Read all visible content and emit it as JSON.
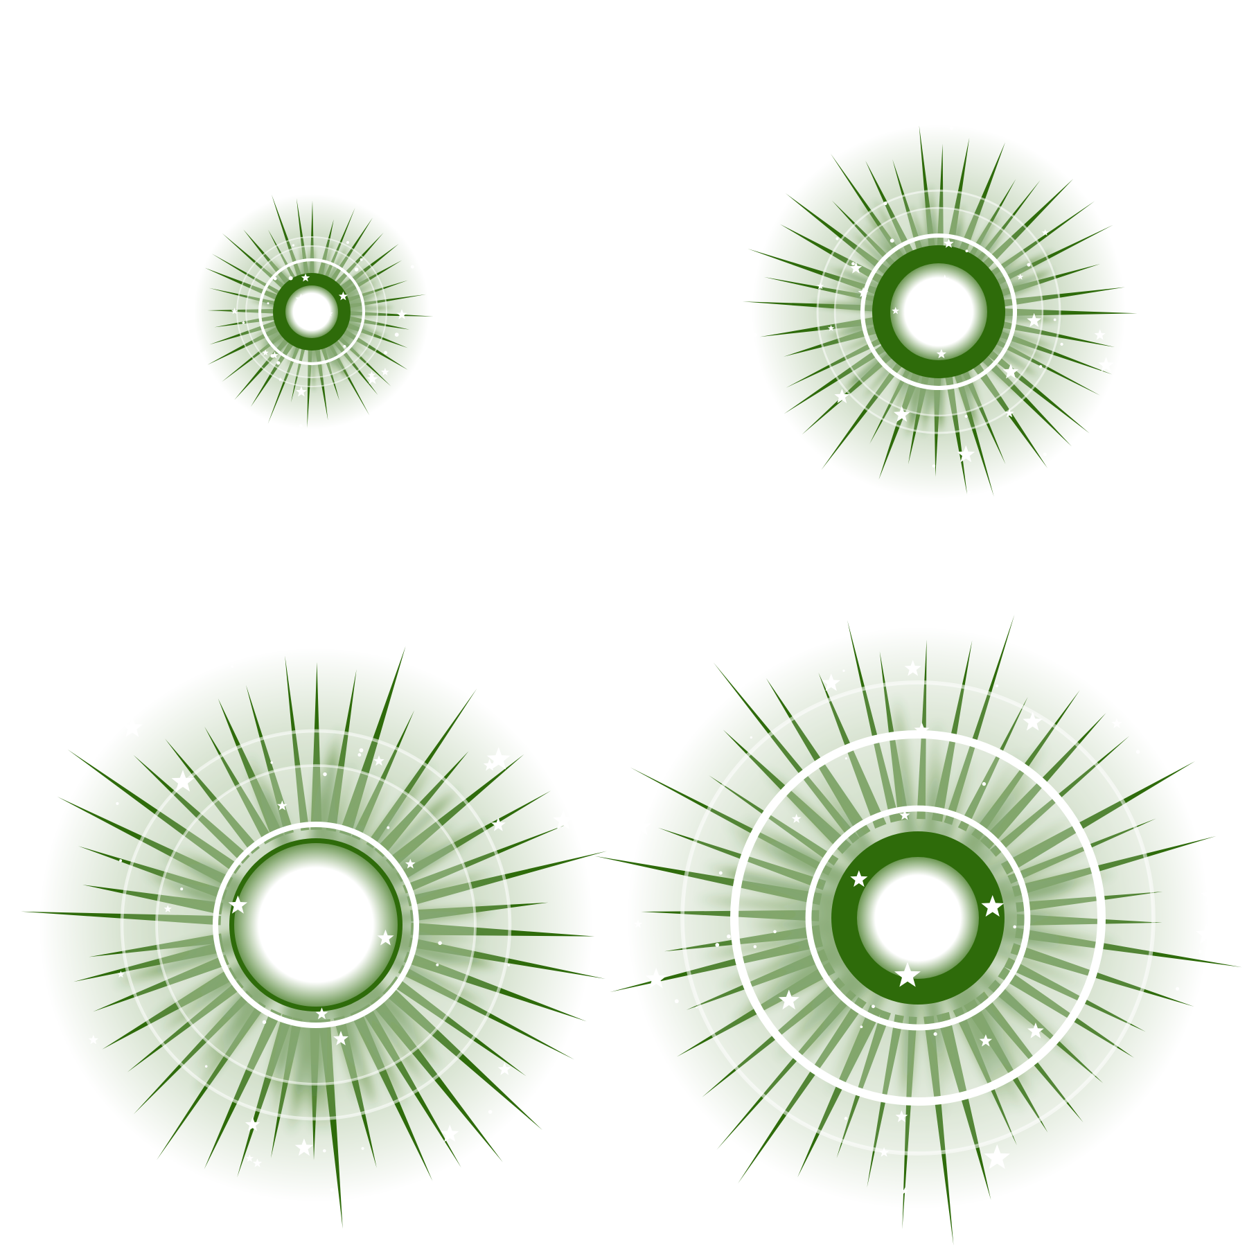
{
  "theme": {
    "burst_color": "#2e6b0a",
    "glow_color": "#2e6b0a",
    "highlight_color": "#ffffff",
    "background": "#ffffff"
  },
  "bursts": [
    {
      "id": "small",
      "size": "small",
      "ring_count": 1,
      "spike_count": 36,
      "star_count": 14,
      "icon": "green-star-burst-icon"
    },
    {
      "id": "medium",
      "size": "medium",
      "ring_count": 1,
      "spike_count": 40,
      "star_count": 18,
      "icon": "green-star-burst-icon"
    },
    {
      "id": "large",
      "size": "large",
      "ring_count": 1,
      "spike_count": 44,
      "star_count": 22,
      "icon": "green-star-burst-icon"
    },
    {
      "id": "xlarge",
      "size": "x-large",
      "ring_count": 2,
      "spike_count": 44,
      "star_count": 22,
      "icon": "green-star-burst-icon"
    }
  ]
}
